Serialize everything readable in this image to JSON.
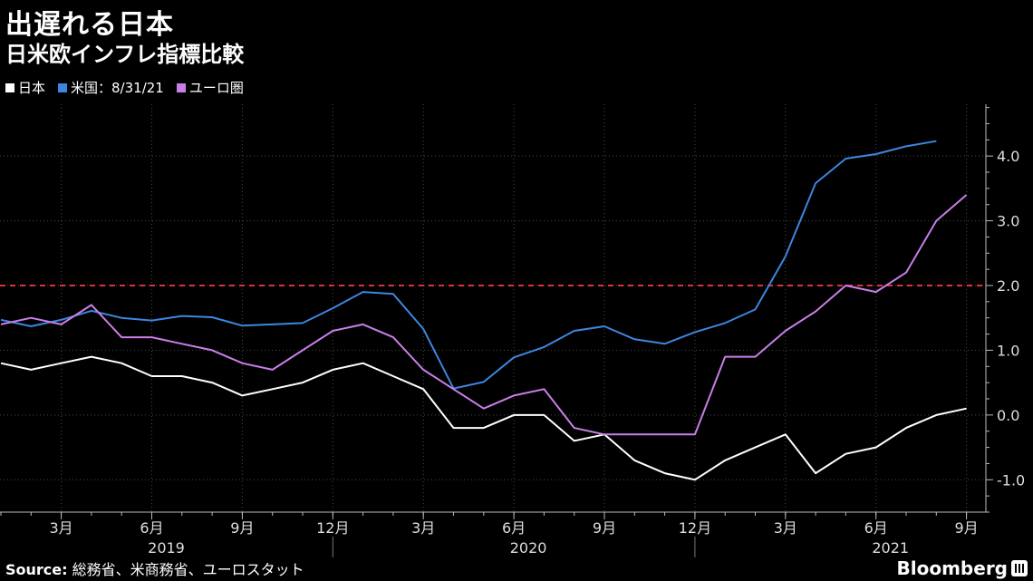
{
  "header": {
    "title": "出遅れる日本",
    "subtitle": "日米欧インフレ指標比較"
  },
  "legend": {
    "items": [
      {
        "label": "日本",
        "color": "#ffffff"
      },
      {
        "label": "米国：8/31/21",
        "color": "#3d86e0"
      },
      {
        "label": "ユーロ圏",
        "color": "#c97fe8"
      }
    ]
  },
  "footer": {
    "source_label": "Source:",
    "source_text": "総務省、米商務省、ユーロスタット",
    "brand": "Bloomberg"
  },
  "chart_data": {
    "type": "line",
    "x": [
      "2019-01",
      "2019-02",
      "2019-03",
      "2019-04",
      "2019-05",
      "2019-06",
      "2019-07",
      "2019-08",
      "2019-09",
      "2019-10",
      "2019-11",
      "2019-12",
      "2020-01",
      "2020-02",
      "2020-03",
      "2020-04",
      "2020-05",
      "2020-06",
      "2020-07",
      "2020-08",
      "2020-09",
      "2020-10",
      "2020-11",
      "2020-12",
      "2021-01",
      "2021-02",
      "2021-03",
      "2021-04",
      "2021-05",
      "2021-06",
      "2021-07",
      "2021-08",
      "2021-09"
    ],
    "x_tick_labels": [
      "3月",
      "6月",
      "9月",
      "12月",
      "3月",
      "6月",
      "9月",
      "12月",
      "3月",
      "6月",
      "9月"
    ],
    "x_tick_positions": [
      "2019-03",
      "2019-06",
      "2019-09",
      "2019-12",
      "2020-03",
      "2020-06",
      "2020-09",
      "2020-12",
      "2021-03",
      "2021-06",
      "2021-09"
    ],
    "year_labels": [
      {
        "label": "2019",
        "center": "2019-06"
      },
      {
        "label": "2020",
        "center": "2020-06"
      },
      {
        "label": "2021",
        "center": "2021-06"
      }
    ],
    "y_ticks": [
      -1.0,
      0.0,
      1.0,
      2.0,
      3.0,
      4.0
    ],
    "y_tick_labels": [
      "-1.0",
      "0.0",
      "1.0",
      "2.0",
      "3.0",
      "4.0"
    ],
    "ylim": [
      -1.5,
      4.8
    ],
    "reference_line": {
      "value": 2.0,
      "color": "#e0313b",
      "style": "dashed"
    },
    "grid": true,
    "series": [
      {
        "name": "日本",
        "color": "#ffffff",
        "values": [
          0.8,
          0.7,
          0.8,
          0.9,
          0.8,
          0.6,
          0.6,
          0.5,
          0.3,
          0.4,
          0.5,
          0.7,
          0.8,
          0.6,
          0.4,
          -0.2,
          -0.2,
          0.0,
          0.0,
          -0.4,
          -0.3,
          -0.7,
          -0.9,
          -1.0,
          -0.7,
          -0.5,
          -0.3,
          -0.9,
          -0.6,
          -0.5,
          -0.2,
          0.0,
          0.1
        ]
      },
      {
        "name": "米国：8/31/21",
        "color": "#3d86e0",
        "values": [
          1.47,
          1.37,
          1.47,
          1.61,
          1.5,
          1.46,
          1.53,
          1.51,
          1.38,
          1.4,
          1.42,
          1.65,
          1.9,
          1.87,
          1.33,
          0.41,
          0.51,
          0.89,
          1.05,
          1.3,
          1.37,
          1.17,
          1.1,
          1.28,
          1.42,
          1.63,
          2.45,
          3.58,
          3.96,
          4.03,
          4.15,
          4.23,
          null
        ]
      },
      {
        "name": "ユーロ圏",
        "color": "#c97fe8",
        "values": [
          1.4,
          1.5,
          1.4,
          1.7,
          1.2,
          1.2,
          1.1,
          1.0,
          0.8,
          0.7,
          1.0,
          1.3,
          1.4,
          1.2,
          0.7,
          0.4,
          0.1,
          0.3,
          0.4,
          -0.2,
          -0.3,
          -0.3,
          -0.3,
          -0.3,
          0.9,
          0.9,
          1.3,
          1.6,
          2.0,
          1.9,
          2.2,
          3.0,
          3.4
        ]
      }
    ]
  }
}
